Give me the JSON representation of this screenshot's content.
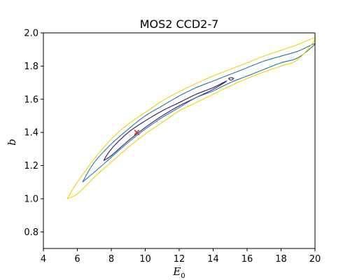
{
  "chart_data": {
    "type": "contour",
    "title": "MOS2 CCD2-7",
    "xlabel": "E",
    "xlabel_sub": "0",
    "ylabel": "b",
    "xlim": [
      4,
      20
    ],
    "ylim": [
      0.7,
      2.0
    ],
    "xticks": [
      4,
      6,
      8,
      10,
      12,
      14,
      16,
      18,
      20
    ],
    "yticks": [
      0.8,
      1.0,
      1.2,
      1.4,
      1.6,
      1.8,
      2.0
    ],
    "xtick_labels": [
      "4",
      "6",
      "8",
      "10",
      "12",
      "14",
      "16",
      "18",
      "20"
    ],
    "ytick_labels": [
      "0.8",
      "1.0",
      "1.2",
      "1.4",
      "1.6",
      "1.8",
      "2.0"
    ],
    "grid": false,
    "best_fit": {
      "x": 9.5,
      "y": 1.4,
      "marker": "x",
      "color": "#d62728"
    },
    "contours": [
      {
        "color": "#2d1e5e",
        "upper": [
          [
            7.55,
            1.23
          ],
          [
            8.0,
            1.3
          ],
          [
            9.0,
            1.4
          ],
          [
            10.0,
            1.47
          ],
          [
            11.0,
            1.53
          ],
          [
            12.0,
            1.58
          ],
          [
            13.0,
            1.63
          ],
          [
            14.0,
            1.67
          ],
          [
            14.8,
            1.71
          ]
        ],
        "lower": [
          [
            7.55,
            1.23
          ],
          [
            8.0,
            1.26
          ],
          [
            9.0,
            1.35
          ],
          [
            10.0,
            1.43
          ],
          [
            11.0,
            1.5
          ],
          [
            12.0,
            1.56
          ],
          [
            13.0,
            1.61
          ],
          [
            14.0,
            1.66
          ],
          [
            14.8,
            1.71
          ]
        ]
      },
      {
        "color": "#2d1e5e",
        "upper": [
          [
            14.9,
            1.725
          ],
          [
            15.05,
            1.73
          ],
          [
            15.2,
            1.725
          ]
        ],
        "lower": [
          [
            14.9,
            1.725
          ],
          [
            15.05,
            1.715
          ],
          [
            15.2,
            1.725
          ]
        ]
      },
      {
        "color": "#1f77b4",
        "upper": [
          [
            6.3,
            1.1
          ],
          [
            7.0,
            1.22
          ],
          [
            8.0,
            1.33
          ],
          [
            9.0,
            1.42
          ],
          [
            10.0,
            1.5
          ],
          [
            11.0,
            1.56
          ],
          [
            12.0,
            1.62
          ],
          [
            13.0,
            1.67
          ],
          [
            14.0,
            1.71
          ],
          [
            15.0,
            1.75
          ],
          [
            16.0,
            1.79
          ],
          [
            17.0,
            1.83
          ],
          [
            18.0,
            1.86
          ],
          [
            19.0,
            1.89
          ],
          [
            20.0,
            1.935
          ]
        ],
        "lower": [
          [
            6.3,
            1.1
          ],
          [
            7.0,
            1.16
          ],
          [
            8.0,
            1.25
          ],
          [
            9.0,
            1.34
          ],
          [
            10.0,
            1.42
          ],
          [
            11.0,
            1.49
          ],
          [
            12.0,
            1.55
          ],
          [
            13.0,
            1.61
          ],
          [
            14.0,
            1.65
          ],
          [
            15.0,
            1.7
          ],
          [
            16.0,
            1.74
          ],
          [
            17.0,
            1.78
          ],
          [
            18.0,
            1.82
          ],
          [
            19.0,
            1.85
          ],
          [
            20.0,
            1.9
          ]
        ]
      },
      {
        "color": "#f2d400",
        "upper": [
          [
            5.4,
            1.0
          ],
          [
            6.0,
            1.1
          ],
          [
            7.0,
            1.24
          ],
          [
            8.0,
            1.36
          ],
          [
            9.0,
            1.45
          ],
          [
            10.0,
            1.52
          ],
          [
            11.0,
            1.59
          ],
          [
            12.0,
            1.645
          ],
          [
            13.0,
            1.695
          ],
          [
            14.0,
            1.74
          ],
          [
            15.0,
            1.78
          ],
          [
            16.0,
            1.82
          ],
          [
            17.0,
            1.86
          ],
          [
            18.0,
            1.895
          ],
          [
            19.0,
            1.93
          ],
          [
            20.0,
            1.965
          ]
        ],
        "lower": [
          [
            5.4,
            1.0
          ],
          [
            6.0,
            1.03
          ],
          [
            7.0,
            1.13
          ],
          [
            8.0,
            1.22
          ],
          [
            9.0,
            1.31
          ],
          [
            10.0,
            1.39
          ],
          [
            11.0,
            1.46
          ],
          [
            12.0,
            1.53
          ],
          [
            13.0,
            1.58
          ],
          [
            14.0,
            1.63
          ],
          [
            15.0,
            1.68
          ],
          [
            16.0,
            1.725
          ],
          [
            17.0,
            1.765
          ],
          [
            18.0,
            1.8
          ],
          [
            19.0,
            1.84
          ],
          [
            20.0,
            1.88
          ]
        ]
      }
    ]
  }
}
